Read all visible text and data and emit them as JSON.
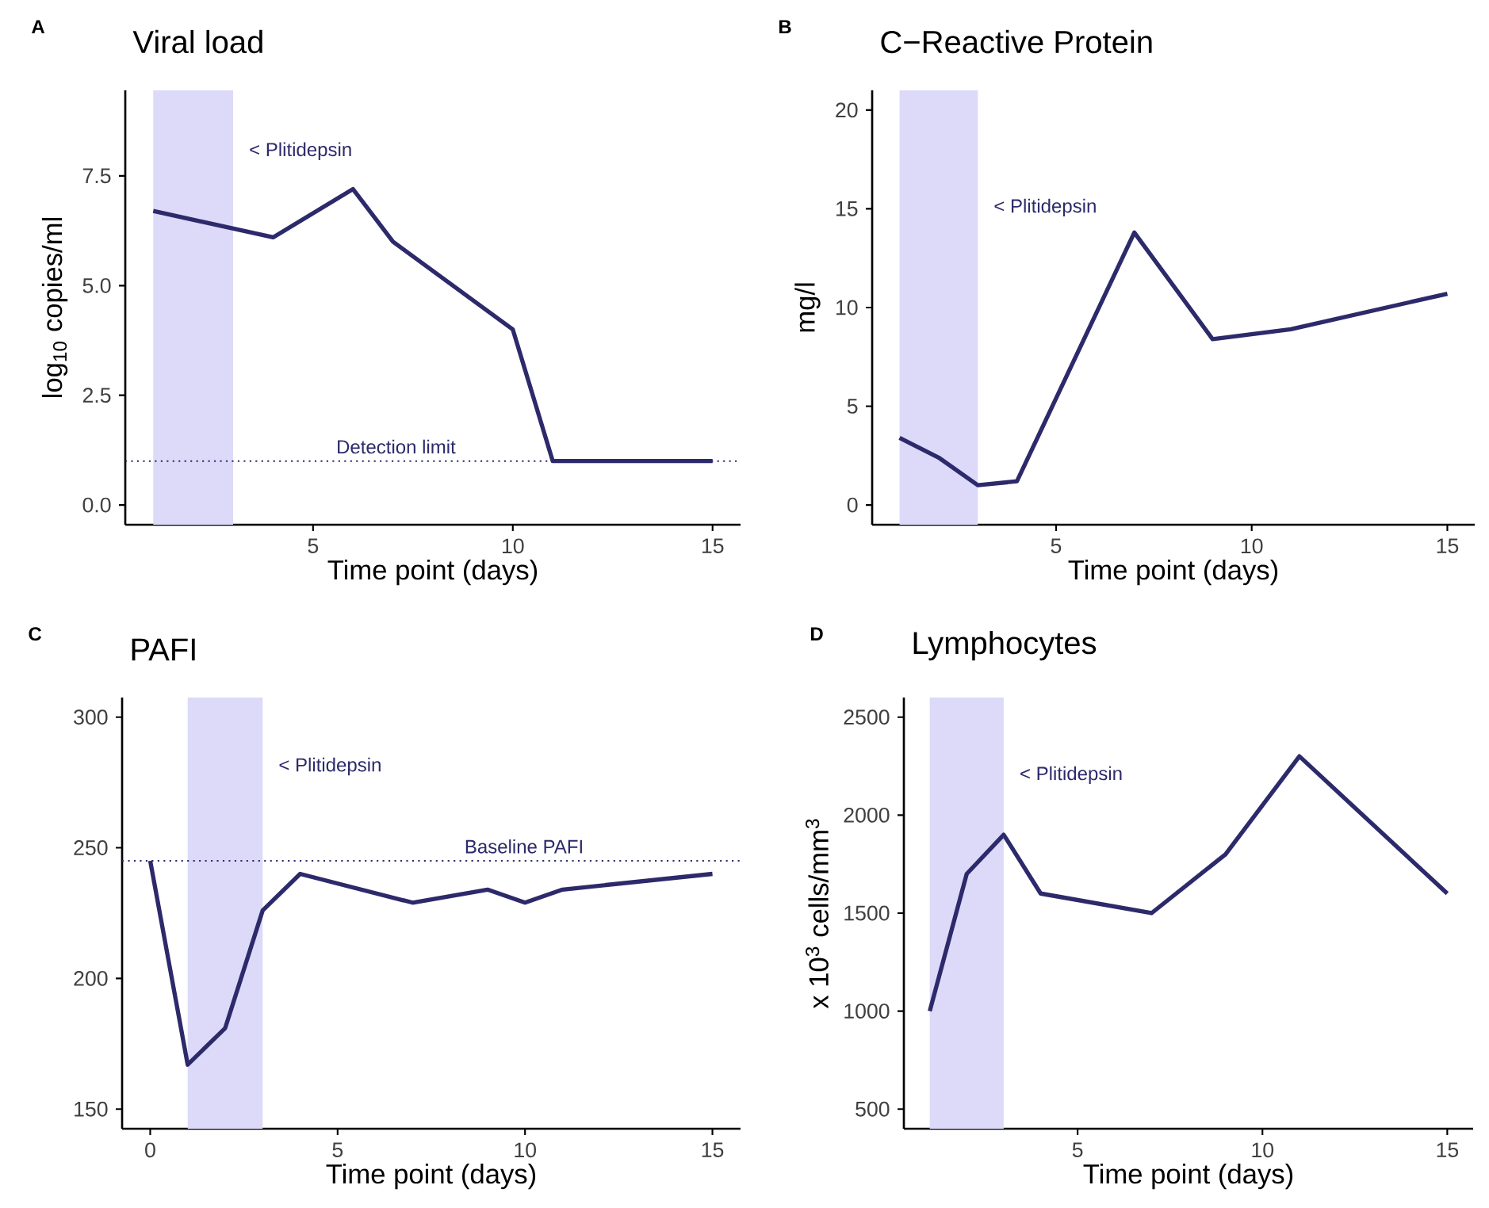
{
  "chart_data": [
    {
      "type": "line",
      "title": "Viral load",
      "xlabel": "Time point (days)",
      "ylabel": "log$_{10}$ copies/ml",
      "annotations": [
        "A"
      ],
      "x": [
        1,
        4,
        6,
        7,
        10,
        11,
        15
      ],
      "series": [
        {
          "color": "#2d2a6b",
          "values": [
            6.7,
            6.1,
            7.2,
            6.0,
            4.0,
            1.0,
            1.0
          ]
        }
      ],
      "xlim": [
        0.3,
        15.7
      ],
      "ylim": [
        -0.45,
        9.45
      ],
      "xticks": [
        5,
        10,
        15
      ],
      "yticks": [
        {
          "value": 0,
          "label": "0.0"
        },
        2.5,
        {
          "value": 5,
          "label": "5.0"
        },
        7.5
      ],
      "bands": [
        {
          "axis": "x",
          "from": 1,
          "to": 3,
          "label": "< Plitidepsin",
          "color": "#dcdaf8"
        }
      ],
      "ref_lines": [
        {
          "axis": "y",
          "value": 1,
          "label": "Detection limit",
          "color": "#2d2a6b",
          "line_style": "dotted"
        }
      ]
    },
    {
      "type": "line",
      "title": "C−Reactive Protein",
      "xlabel": "Time point (days)",
      "ylabel": "mg/l",
      "annotations": [
        "B"
      ],
      "x": [
        1,
        2,
        3,
        4,
        7,
        9,
        11,
        15
      ],
      "series": [
        {
          "color": "#2d2a6b",
          "values": [
            3.4,
            2.4,
            1.0,
            1.2,
            13.8,
            8.4,
            8.9,
            10.7
          ]
        }
      ],
      "xlim": [
        0.3,
        15.7
      ],
      "ylim": [
        -1,
        21
      ],
      "xticks": [
        5,
        10,
        15
      ],
      "yticks": [
        0,
        5,
        10,
        15,
        20
      ],
      "bands": [
        {
          "axis": "x",
          "from": 1,
          "to": 3,
          "label": "< Plitidepsin",
          "color": "#dcdaf8"
        }
      ]
    },
    {
      "type": "line",
      "title": "PAFI",
      "xlabel": "Time point (days)",
      "annotations": [
        "C"
      ],
      "x": [
        0,
        1,
        2,
        3,
        4,
        7,
        9,
        10,
        11,
        15
      ],
      "series": [
        {
          "color": "#2d2a6b",
          "values": [
            245,
            167,
            181,
            226,
            240,
            229,
            234,
            229,
            234,
            240
          ]
        }
      ],
      "xlim": [
        -0.75,
        15.75
      ],
      "ylim": [
        142.5,
        307.5
      ],
      "xticks": [
        0,
        5,
        10,
        15
      ],
      "yticks": [
        150,
        200,
        250,
        300
      ],
      "bands": [
        {
          "axis": "x",
          "from": 1,
          "to": 3,
          "label": "< Plitidepsin",
          "color": "#dcdaf8"
        }
      ],
      "ref_lines": [
        {
          "axis": "y",
          "value": 245,
          "label": "Baseline PAFI",
          "color": "#2d2a6b",
          "line_style": "dotted"
        }
      ]
    },
    {
      "type": "line",
      "title": "Lymphocytes",
      "xlabel": "Time point (days)",
      "ylabel": "x 10$^{3}$ cells/mm$^{3}$",
      "annotations": [
        "D"
      ],
      "x": [
        1,
        2,
        3,
        4,
        7,
        9,
        11,
        15
      ],
      "series": [
        {
          "color": "#2d2a6b",
          "values": [
            1000,
            1700,
            1900,
            1600,
            1500,
            1800,
            2300,
            1600
          ]
        }
      ],
      "xlim": [
        0.3,
        15.7
      ],
      "ylim": [
        400,
        2600
      ],
      "xticks": [
        5,
        10,
        15
      ],
      "yticks": [
        500,
        1000,
        1500,
        2000,
        2500
      ],
      "bands": [
        {
          "axis": "x",
          "from": 1,
          "to": 3,
          "label": "< Plitidepsin",
          "color": "#dcdaf8"
        }
      ]
    }
  ]
}
